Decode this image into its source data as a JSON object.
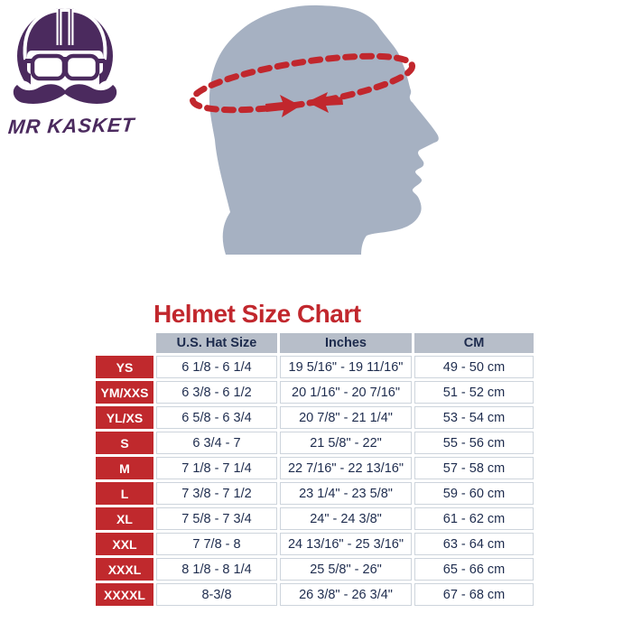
{
  "brand": {
    "name": "MR KASKET",
    "logo_icon": "helmet-goggles-mustache-icon",
    "color": "#4b2a5e"
  },
  "figure": {
    "name": "head-circumference-measurement",
    "head_color": "#a6b1c2",
    "band_color": "#c1272d"
  },
  "chart": {
    "title": "Helmet Size Chart",
    "title_color": "#c1272d"
  },
  "chart_data": {
    "type": "table",
    "title": "Helmet Size Chart",
    "columns": [
      "U.S. Hat Size",
      "Inches",
      "CM"
    ],
    "rows": [
      [
        "YS",
        "6 1/8 - 6 1/4",
        "19 5/16\" - 19 11/16\"",
        "49 - 50 cm"
      ],
      [
        "YM/XXS",
        "6 3/8 - 6 1/2",
        "20 1/16\" - 20 7/16\"",
        "51 - 52 cm"
      ],
      [
        "YL/XS",
        "6 5/8 - 6 3/4",
        "20 7/8\" - 21 1/4\"",
        "53 - 54 cm"
      ],
      [
        "S",
        "6 3/4 - 7",
        "21 5/8\" - 22\"",
        "55 - 56 cm"
      ],
      [
        "M",
        "7 1/8 - 7 1/4",
        "22 7/16\" - 22 13/16\"",
        "57 - 58 cm"
      ],
      [
        "L",
        "7 3/8 - 7 1/2",
        "23 1/4\" - 23 5/8\"",
        "59 - 60 cm"
      ],
      [
        "XL",
        "7 5/8 - 7 3/4",
        "24\" - 24 3/8\"",
        "61 - 62 cm"
      ],
      [
        "XXL",
        "7 7/8 - 8",
        "24 13/16\" - 25 3/16\"",
        "63 - 64 cm"
      ],
      [
        "XXXL",
        "8 1/8 - 8 1/4",
        "25 5/8\" - 26\"",
        "65 - 66 cm"
      ],
      [
        "XXXXL",
        "8-3/8",
        "26 3/8\" - 26 3/4\"",
        "67 - 68 cm"
      ]
    ]
  },
  "colors": {
    "accent_red": "#c1272d",
    "navy_text": "#1d2b4d",
    "header_bg": "#b7bec9",
    "brand_purple": "#4b2a5e",
    "head_gray": "#a6b1c2"
  }
}
